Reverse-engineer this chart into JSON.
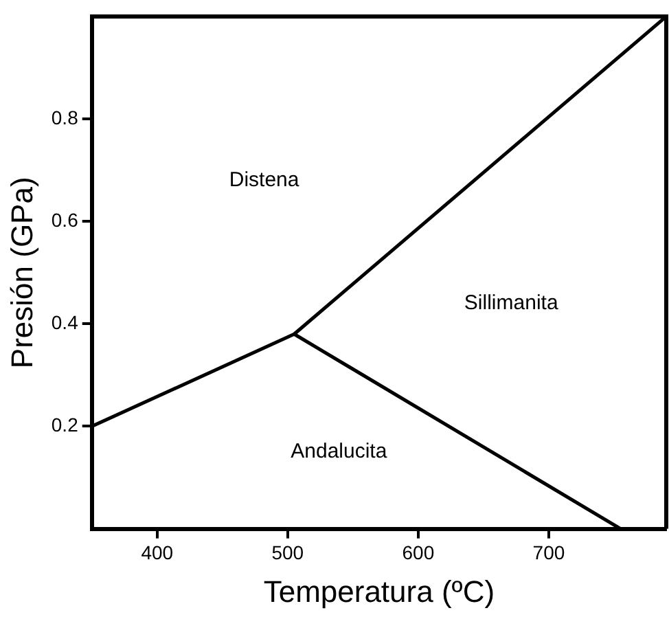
{
  "chart_data": {
    "type": "line",
    "xlabel": "Temperatura (ºC)",
    "ylabel": "Presión (GPa)",
    "series": [
      {
        "color": "#000000",
        "x": [
          350,
          505,
          790
        ],
        "values": [
          0.2,
          0.38,
          1.0
        ]
      },
      {
        "color": "#000000",
        "x": [
          505,
          755
        ],
        "values": [
          0.38,
          0
        ]
      }
    ],
    "xlim": [
      350,
      790
    ],
    "xticks": [
      400,
      500,
      600,
      700
    ],
    "ylim": [
      0,
      1
    ],
    "yticks": [
      0.2,
      0.4,
      0.6,
      0.8
    ],
    "annotations": [
      "Distena",
      "Sillimanita",
      "Andalucita"
    ],
    "grid": false,
    "legend": false,
    "marker": "none",
    "line_style": "solid"
  }
}
